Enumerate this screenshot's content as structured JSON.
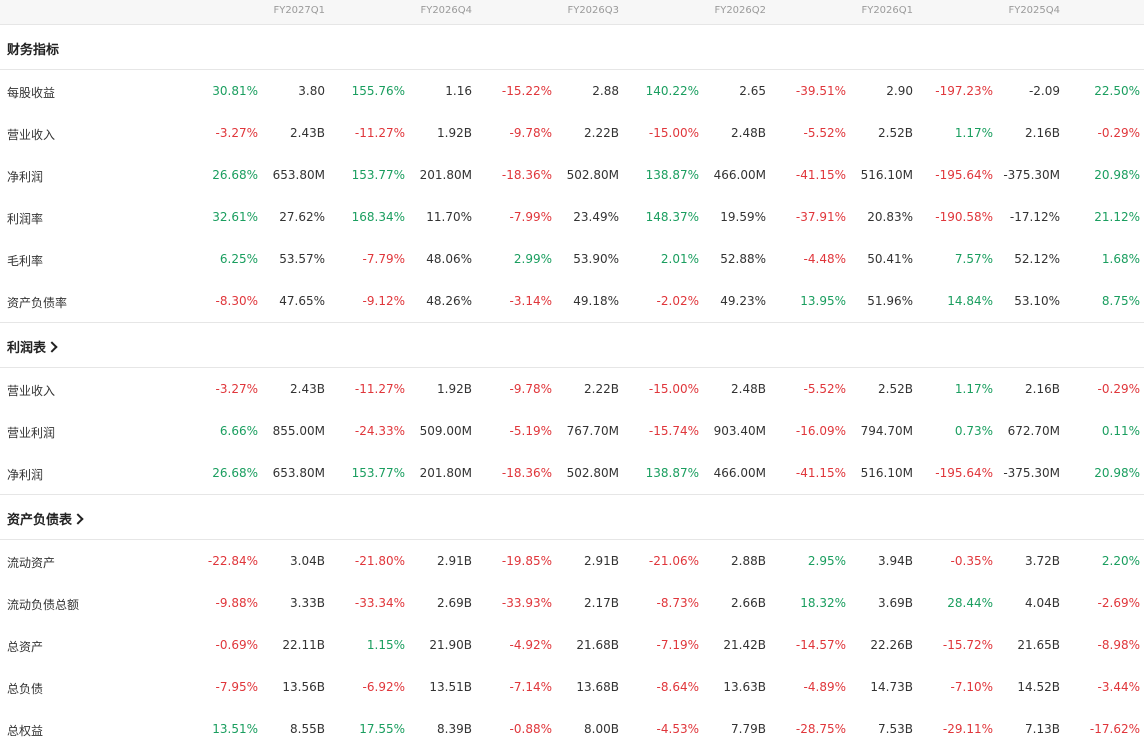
{
  "periods": [
    "FY2027Q1",
    "FY2026Q4",
    "FY2026Q3",
    "FY2026Q2",
    "FY2026Q1",
    "FY2025Q4"
  ],
  "colors": {
    "positive": "#1a9e5f",
    "negative": "#e0363b"
  },
  "sections": [
    {
      "title": "财务指标",
      "link": false,
      "rows": [
        {
          "label": "每股收益",
          "cells": [
            [
              "30.81%",
              "3.80"
            ],
            [
              "155.76%",
              "1.16"
            ],
            [
              "-15.22%",
              "2.88"
            ],
            [
              "140.22%",
              "2.65"
            ],
            [
              "-39.51%",
              "2.90"
            ],
            [
              "-197.23%",
              "-2.09"
            ],
            [
              "22.50%",
              ""
            ]
          ]
        },
        {
          "label": "营业收入",
          "cells": [
            [
              "-3.27%",
              "2.43B"
            ],
            [
              "-11.27%",
              "1.92B"
            ],
            [
              "-9.78%",
              "2.22B"
            ],
            [
              "-15.00%",
              "2.48B"
            ],
            [
              "-5.52%",
              "2.52B"
            ],
            [
              "1.17%",
              "2.16B"
            ],
            [
              "-0.29%",
              ""
            ]
          ]
        },
        {
          "label": "净利润",
          "cells": [
            [
              "26.68%",
              "653.80M"
            ],
            [
              "153.77%",
              "201.80M"
            ],
            [
              "-18.36%",
              "502.80M"
            ],
            [
              "138.87%",
              "466.00M"
            ],
            [
              "-41.15%",
              "516.10M"
            ],
            [
              "-195.64%",
              "-375.30M"
            ],
            [
              "20.98%",
              ""
            ]
          ]
        },
        {
          "label": "利润率",
          "cells": [
            [
              "32.61%",
              "27.62%"
            ],
            [
              "168.34%",
              "11.70%"
            ],
            [
              "-7.99%",
              "23.49%"
            ],
            [
              "148.37%",
              "19.59%"
            ],
            [
              "-37.91%",
              "20.83%"
            ],
            [
              "-190.58%",
              "-17.12%"
            ],
            [
              "21.12%",
              ""
            ]
          ]
        },
        {
          "label": "毛利率",
          "cells": [
            [
              "6.25%",
              "53.57%"
            ],
            [
              "-7.79%",
              "48.06%"
            ],
            [
              "2.99%",
              "53.90%"
            ],
            [
              "2.01%",
              "52.88%"
            ],
            [
              "-4.48%",
              "50.41%"
            ],
            [
              "7.57%",
              "52.12%"
            ],
            [
              "1.68%",
              ""
            ]
          ]
        },
        {
          "label": "资产负债率",
          "cells": [
            [
              "-8.30%",
              "47.65%"
            ],
            [
              "-9.12%",
              "48.26%"
            ],
            [
              "-3.14%",
              "49.18%"
            ],
            [
              "-2.02%",
              "49.23%"
            ],
            [
              "13.95%",
              "51.96%"
            ],
            [
              "14.84%",
              "53.10%"
            ],
            [
              "8.75%",
              ""
            ]
          ]
        }
      ]
    },
    {
      "title": "利润表",
      "link": true,
      "rows": [
        {
          "label": "营业收入",
          "cells": [
            [
              "-3.27%",
              "2.43B"
            ],
            [
              "-11.27%",
              "1.92B"
            ],
            [
              "-9.78%",
              "2.22B"
            ],
            [
              "-15.00%",
              "2.48B"
            ],
            [
              "-5.52%",
              "2.52B"
            ],
            [
              "1.17%",
              "2.16B"
            ],
            [
              "-0.29%",
              ""
            ]
          ]
        },
        {
          "label": "营业利润",
          "cells": [
            [
              "6.66%",
              "855.00M"
            ],
            [
              "-24.33%",
              "509.00M"
            ],
            [
              "-5.19%",
              "767.70M"
            ],
            [
              "-15.74%",
              "903.40M"
            ],
            [
              "-16.09%",
              "794.70M"
            ],
            [
              "0.73%",
              "672.70M"
            ],
            [
              "0.11%",
              ""
            ]
          ]
        },
        {
          "label": "净利润",
          "cells": [
            [
              "26.68%",
              "653.80M"
            ],
            [
              "153.77%",
              "201.80M"
            ],
            [
              "-18.36%",
              "502.80M"
            ],
            [
              "138.87%",
              "466.00M"
            ],
            [
              "-41.15%",
              "516.10M"
            ],
            [
              "-195.64%",
              "-375.30M"
            ],
            [
              "20.98%",
              ""
            ]
          ]
        }
      ]
    },
    {
      "title": "资产负债表",
      "link": true,
      "rows": [
        {
          "label": "流动资产",
          "cells": [
            [
              "-22.84%",
              "3.04B"
            ],
            [
              "-21.80%",
              "2.91B"
            ],
            [
              "-19.85%",
              "2.91B"
            ],
            [
              "-21.06%",
              "2.88B"
            ],
            [
              "2.95%",
              "3.94B"
            ],
            [
              "-0.35%",
              "3.72B"
            ],
            [
              "2.20%",
              ""
            ]
          ]
        },
        {
          "label": "流动负债总额",
          "cells": [
            [
              "-9.88%",
              "3.33B"
            ],
            [
              "-33.34%",
              "2.69B"
            ],
            [
              "-33.93%",
              "2.17B"
            ],
            [
              "-8.73%",
              "2.66B"
            ],
            [
              "18.32%",
              "3.69B"
            ],
            [
              "28.44%",
              "4.04B"
            ],
            [
              "-2.69%",
              ""
            ]
          ]
        },
        {
          "label": "总资产",
          "cells": [
            [
              "-0.69%",
              "22.11B"
            ],
            [
              "1.15%",
              "21.90B"
            ],
            [
              "-4.92%",
              "21.68B"
            ],
            [
              "-7.19%",
              "21.42B"
            ],
            [
              "-14.57%",
              "22.26B"
            ],
            [
              "-15.72%",
              "21.65B"
            ],
            [
              "-8.98%",
              ""
            ]
          ]
        },
        {
          "label": "总负债",
          "cells": [
            [
              "-7.95%",
              "13.56B"
            ],
            [
              "-6.92%",
              "13.51B"
            ],
            [
              "-7.14%",
              "13.68B"
            ],
            [
              "-8.64%",
              "13.63B"
            ],
            [
              "-4.89%",
              "14.73B"
            ],
            [
              "-7.10%",
              "14.52B"
            ],
            [
              "-3.44%",
              ""
            ]
          ]
        },
        {
          "label": "总权益",
          "cells": [
            [
              "13.51%",
              "8.55B"
            ],
            [
              "17.55%",
              "8.39B"
            ],
            [
              "-0.88%",
              "8.00B"
            ],
            [
              "-4.53%",
              "7.79B"
            ],
            [
              "-28.75%",
              "7.53B"
            ],
            [
              "-29.11%",
              "7.13B"
            ],
            [
              "-17.62%",
              ""
            ]
          ]
        }
      ]
    }
  ]
}
